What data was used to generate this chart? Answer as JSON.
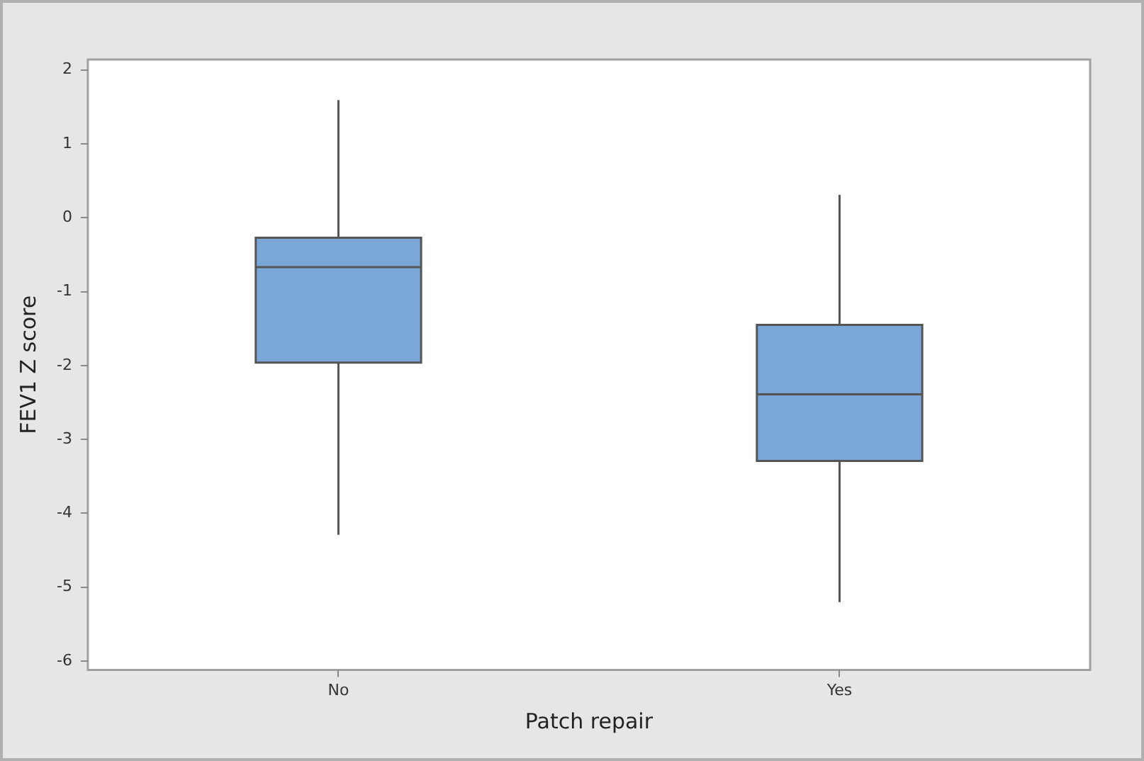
{
  "chart_data": {
    "type": "box",
    "xlabel": "Patch repair",
    "ylabel": "FEV1 Z score",
    "categories": [
      "No",
      "Yes"
    ],
    "boxes": [
      {
        "low": -4.29,
        "q1": -1.96,
        "median": -0.67,
        "q3": -0.27,
        "high": 1.59
      },
      {
        "low": -5.2,
        "q1": -3.29,
        "median": -2.39,
        "q3": -1.45,
        "high": 0.31
      }
    ],
    "color": "#7ba6d8",
    "ylim": [
      -6.12,
      2.14
    ],
    "yticks": [
      -6,
      -5,
      -4,
      -3,
      -2,
      -1,
      0,
      1,
      2
    ],
    "grid": false,
    "legend": false
  }
}
